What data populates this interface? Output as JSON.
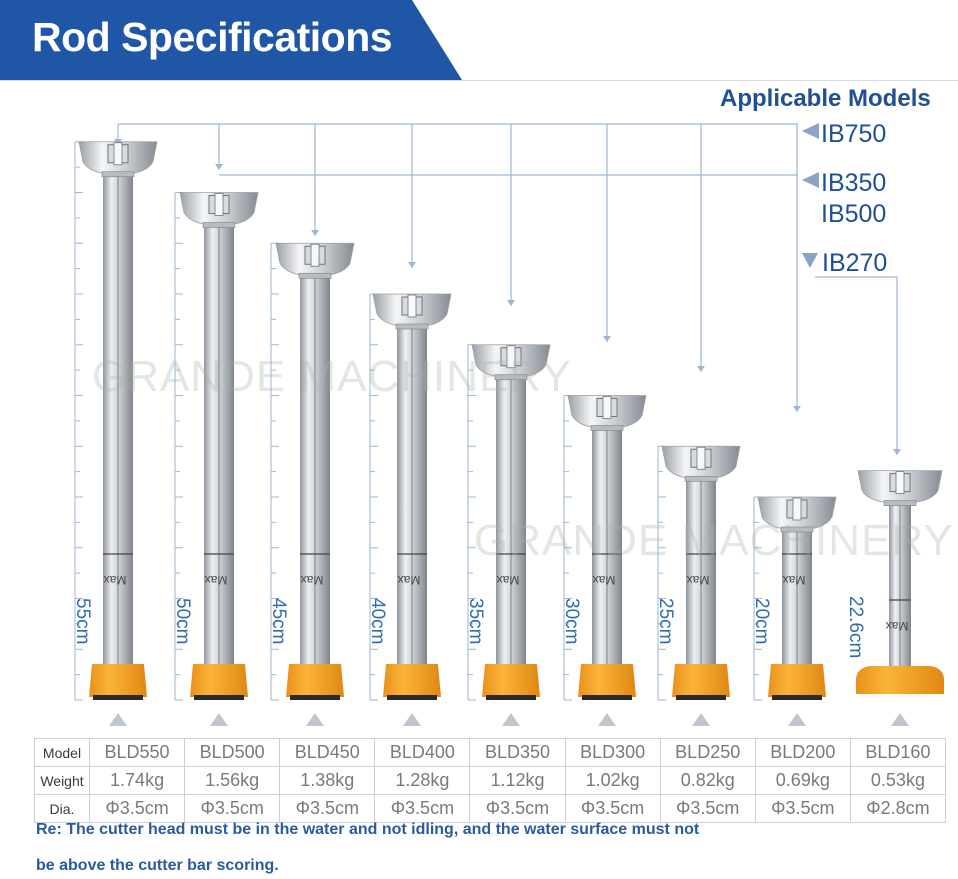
{
  "header": {
    "title": "Rod Specifications"
  },
  "applicable_models": {
    "title": "Applicable Models",
    "tags": [
      {
        "label": "IB750"
      },
      {
        "label": "IB350"
      },
      {
        "label": "IB500"
      },
      {
        "label": "IB270"
      }
    ]
  },
  "watermark": {
    "text": "GRANDE MACHINERY"
  },
  "rods": [
    {
      "model": "BLD550",
      "height_label": "55cm",
      "height_cm": 55,
      "max_mark": "Max"
    },
    {
      "model": "BLD500",
      "height_label": "50cm",
      "height_cm": 50,
      "max_mark": "Max"
    },
    {
      "model": "BLD450",
      "height_label": "45cm",
      "height_cm": 45,
      "max_mark": "Max"
    },
    {
      "model": "BLD400",
      "height_label": "40cm",
      "height_cm": 40,
      "max_mark": "Max"
    },
    {
      "model": "BLD350",
      "height_label": "35cm",
      "height_cm": 35,
      "max_mark": "Max"
    },
    {
      "model": "BLD300",
      "height_label": "30cm",
      "height_cm": 30,
      "max_mark": "Max"
    },
    {
      "model": "BLD250",
      "height_label": "25cm",
      "height_cm": 25,
      "max_mark": "Max"
    },
    {
      "model": "BLD200",
      "height_label": "20cm",
      "height_cm": 20,
      "max_mark": "Max"
    },
    {
      "model": "BLD160",
      "height_label": "22.6cm",
      "height_cm": 22.6,
      "max_mark": "Max"
    }
  ],
  "table": {
    "row_headers": [
      "Model",
      "Weight",
      "Dia."
    ],
    "models": [
      "BLD550",
      "BLD500",
      "BLD450",
      "BLD400",
      "BLD350",
      "BLD300",
      "BLD250",
      "BLD200",
      "BLD160"
    ],
    "weights": [
      "1.74kg",
      "1.56kg",
      "1.38kg",
      "1.28kg",
      "1.12kg",
      "1.02kg",
      "0.82kg",
      "0.69kg",
      "0.53kg"
    ],
    "diameters": [
      "Φ3.5cm",
      "Φ3.5cm",
      "Φ3.5cm",
      "Φ3.5cm",
      "Φ3.5cm",
      "Φ3.5cm",
      "Φ3.5cm",
      "Φ3.5cm",
      "Φ2.8cm"
    ]
  },
  "note": {
    "line1": "Re: The cutter head must be in the water and not idling, and the water surface must not",
    "line2": "be above the cutter bar scoring."
  },
  "colors": {
    "banner": "#1f56a6",
    "title_blue": "#1f4f96",
    "label_blue": "#2f6db0",
    "connector": "#9fb6d3",
    "base_orange": "#f4a11e",
    "steel_mid": "#c9cdd2",
    "steel_light": "#eef0f2",
    "steel_dark": "#8f959c"
  }
}
